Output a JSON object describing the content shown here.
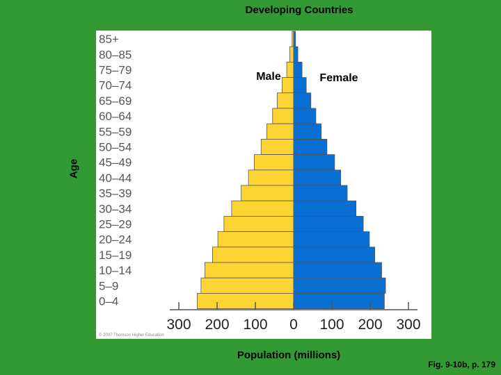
{
  "slide": {
    "title": "Developing Countries",
    "caption": "Fig. 9-10b, p. 179",
    "copyright": "© 2007 Thomson Higher Education"
  },
  "chart_data": {
    "type": "bar",
    "orientation": "horizontal-population-pyramid",
    "title": "Developing Countries",
    "ylabel": "Age",
    "xlabel": "Population (millions)",
    "categories": [
      "85+",
      "80–85",
      "75–79",
      "70–74",
      "65–69",
      "60–64",
      "55–59",
      "50–54",
      "45–49",
      "40–44",
      "35–39",
      "30–34",
      "25–29",
      "20–24",
      "15–19",
      "10–14",
      "5–9",
      "0–4"
    ],
    "series": [
      {
        "name": "Male",
        "color": "#fcd535",
        "values": [
          4,
          10,
          18,
          30,
          43,
          55,
          70,
          85,
          103,
          118,
          137,
          162,
          182,
          198,
          212,
          232,
          242,
          252
        ]
      },
      {
        "name": "Female",
        "color": "#0a6fd2",
        "values": [
          5,
          11,
          22,
          33,
          45,
          58,
          72,
          87,
          107,
          123,
          140,
          163,
          182,
          198,
          212,
          230,
          240,
          237
        ]
      }
    ],
    "x_ticks": [
      "300",
      "200",
      "100",
      "0",
      "100",
      "200",
      "300"
    ],
    "xlim": [
      -300,
      300
    ],
    "grid": false
  }
}
